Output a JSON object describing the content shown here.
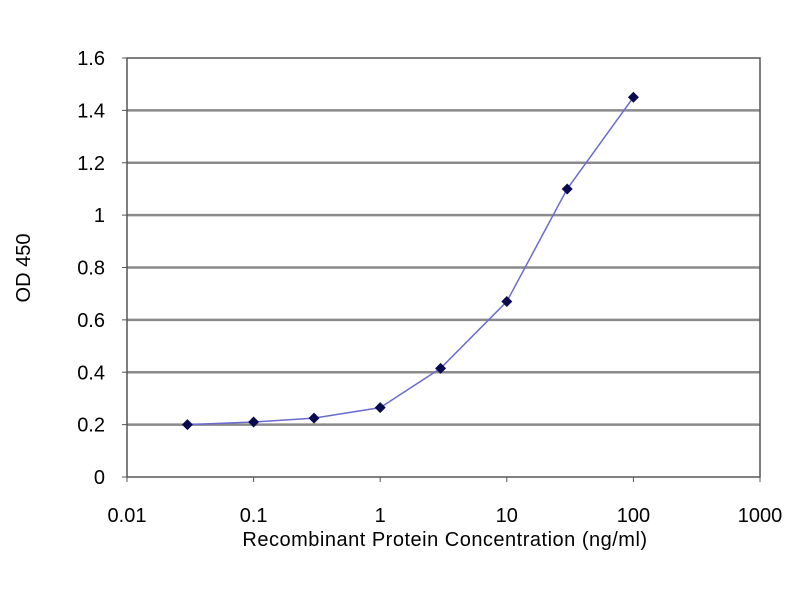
{
  "chart_data": {
    "type": "line",
    "title": "",
    "xlabel": "Recombinant Protein Concentration (ng/ml)",
    "ylabel": "OD 450",
    "x_scale": "log",
    "xlim": [
      0.01,
      1000
    ],
    "ylim": [
      0,
      1.6
    ],
    "x_ticks": [
      "0.01",
      "0.1",
      "1",
      "10",
      "100",
      "1000"
    ],
    "y_ticks": [
      "0",
      "0.2",
      "0.4",
      "0.6",
      "0.8",
      "1",
      "1.2",
      "1.4",
      "1.6"
    ],
    "grid": "horizontal",
    "series": [
      {
        "x": [
          0.03,
          0.1,
          0.3,
          1,
          3,
          10,
          30,
          100
        ],
        "y": [
          0.2,
          0.21,
          0.225,
          0.265,
          0.415,
          0.67,
          1.1,
          1.45
        ],
        "line_color": "#6b6bd0",
        "marker_color": "#0a0a50",
        "marker": "diamond"
      }
    ]
  }
}
